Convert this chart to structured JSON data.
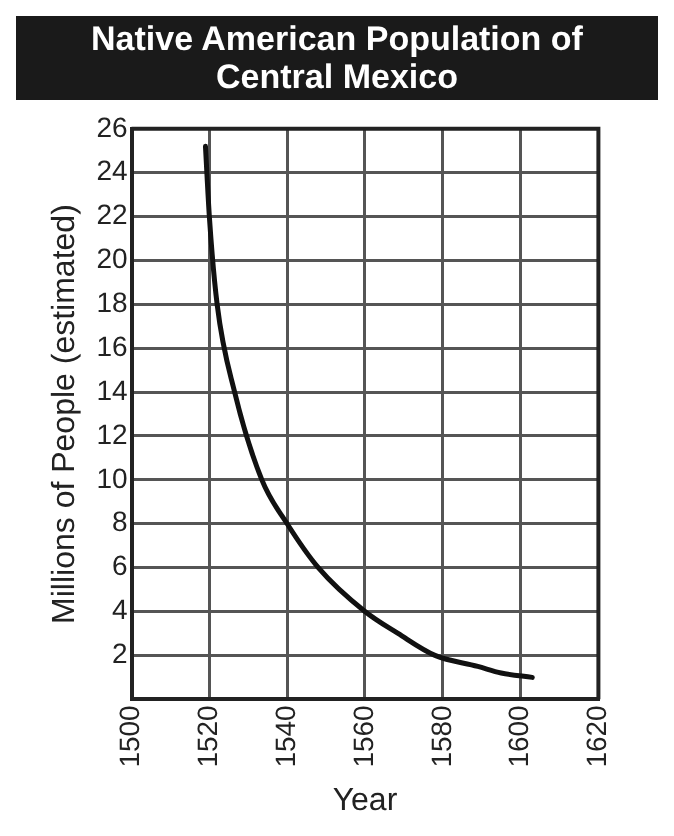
{
  "chart_data": {
    "type": "line",
    "title": "Native American Population of Central Mexico",
    "xlabel": "Year",
    "ylabel": "Millions of People (estimated)",
    "series": [
      {
        "color": "#111111",
        "x": [
          1519,
          1520,
          1522,
          1526.5,
          1533.5,
          1540,
          1548,
          1560,
          1568.5,
          1578,
          1589,
          1595,
          1603
        ],
        "values": [
          25.2,
          22,
          18,
          14,
          10,
          8,
          6,
          4,
          3,
          2,
          1.5,
          1.2,
          1
        ]
      }
    ],
    "xlim": [
      1500,
      1620
    ],
    "xticks": [
      1500,
      1520,
      1540,
      1560,
      1580,
      1600,
      1620
    ],
    "ylim": [
      0,
      26
    ],
    "yticks": [
      2,
      4,
      6,
      8,
      10,
      12,
      14,
      16,
      18,
      20,
      22,
      24,
      26
    ],
    "grid": true,
    "legend": false,
    "marker": "none",
    "line_style": "solid"
  }
}
